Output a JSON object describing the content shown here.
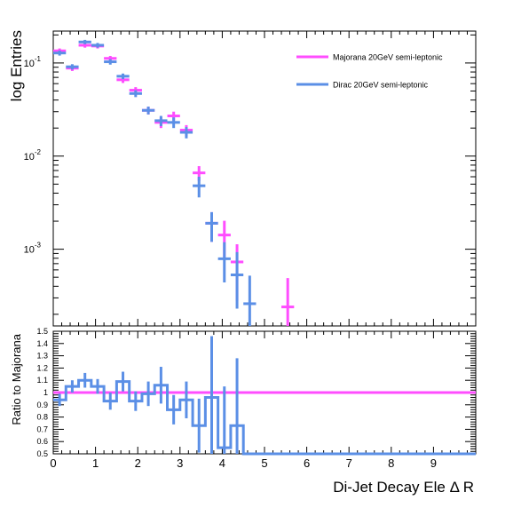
{
  "colors": {
    "majorana": "#ff4dff",
    "dirac": "#5b8fe6",
    "axis": "#000000",
    "background": "#ffffff"
  },
  "chart_data": [
    {
      "type": "scatter",
      "y_scale": "log",
      "xlim": [
        0,
        10
      ],
      "ylim": [
        0.00015,
        0.22
      ],
      "xlabel": "",
      "ylabel": "log Entries",
      "bin_width": 0.3,
      "legend_position": "top-right",
      "y_ticks": [
        {
          "value": 0.1,
          "mantissa": "10",
          "exp": "-1"
        },
        {
          "value": 0.01,
          "mantissa": "10",
          "exp": "-2"
        },
        {
          "value": 0.001,
          "mantissa": "10",
          "exp": "-3"
        }
      ],
      "series": [
        {
          "name": "Majorana 20GeV semi-leptonic",
          "color_key": "majorana",
          "x": [
            0.15,
            0.45,
            0.75,
            1.05,
            1.35,
            1.65,
            1.95,
            2.25,
            2.55,
            2.85,
            3.15,
            3.45,
            3.75,
            4.05,
            4.35,
            5.55
          ],
          "y": [
            0.135,
            0.088,
            0.155,
            0.152,
            0.112,
            0.066,
            0.051,
            0.031,
            0.023,
            0.027,
            0.019,
            0.0066,
            0.0019,
            0.00142,
            0.00073,
            0.00024
          ],
          "yerr_low": [
            0.008,
            0.006,
            0.009,
            0.009,
            0.007,
            0.005,
            0.004,
            0.003,
            0.003,
            0.003,
            0.0025,
            0.0012,
            0.0007,
            0.0006,
            0.00045,
            0.00011
          ],
          "yerr_high": [
            0.008,
            0.006,
            0.009,
            0.009,
            0.007,
            0.005,
            0.004,
            0.003,
            0.003,
            0.003,
            0.0025,
            0.0012,
            0.0006,
            0.0006,
            0.0004,
            0.00025
          ]
        },
        {
          "name": "Dirac 20GeV semi-leptonic",
          "color_key": "dirac",
          "x": [
            0.15,
            0.45,
            0.75,
            1.05,
            1.35,
            1.65,
            1.95,
            2.25,
            2.55,
            2.85,
            3.15,
            3.45,
            3.75,
            4.05,
            4.35,
            4.65
          ],
          "y": [
            0.128,
            0.091,
            0.168,
            0.155,
            0.103,
            0.072,
            0.047,
            0.031,
            0.024,
            0.023,
            0.018,
            0.0048,
            0.0019,
            0.00079,
            0.00053,
            0.00026
          ],
          "yerr_low": [
            0.008,
            0.006,
            0.009,
            0.009,
            0.007,
            0.005,
            0.004,
            0.003,
            0.003,
            0.003,
            0.0025,
            0.0012,
            0.0007,
            0.00035,
            0.0003,
            0.00012
          ],
          "yerr_high": [
            0.008,
            0.006,
            0.009,
            0.009,
            0.007,
            0.005,
            0.004,
            0.003,
            0.003,
            0.003,
            0.0025,
            0.0012,
            0.0006,
            0.0004,
            0.0004,
            0.00026
          ]
        }
      ]
    },
    {
      "type": "line",
      "xlim": [
        0,
        10
      ],
      "ylim": [
        0.5,
        1.5
      ],
      "xlabel": "Di-Jet Decay Ele  Δ R",
      "ylabel": "Ratio to Majorana",
      "x_tick_labels": [
        "0",
        "1",
        "2",
        "3",
        "4",
        "5",
        "6",
        "7",
        "8",
        "9"
      ],
      "y_tick_labels": [
        "0.5",
        "0.6",
        "0.7",
        "0.8",
        "0.9",
        "1",
        "1.1",
        "1.2",
        "1.3",
        "1.4",
        "1.5"
      ],
      "reference_line": {
        "y": 1.0,
        "color_key": "majorana"
      },
      "series": [
        {
          "name": "",
          "color_key": "dirac",
          "bin_edges": [
            0,
            0.3,
            0.6,
            0.9,
            1.2,
            1.5,
            1.8,
            2.1,
            2.4,
            2.7,
            3.0,
            3.3,
            3.6,
            3.9,
            4.2,
            4.5,
            10
          ],
          "values": [
            0.94,
            1.05,
            1.1,
            1.05,
            0.93,
            1.09,
            0.93,
            0.99,
            1.06,
            0.86,
            0.94,
            0.73,
            0.96,
            0.55,
            0.73,
            0.5
          ],
          "yerr": [
            0.05,
            0.05,
            0.06,
            0.06,
            0.07,
            0.08,
            0.08,
            0.1,
            0.15,
            0.12,
            0.15,
            0.22,
            0.5,
            0.5,
            0.55,
            0
          ]
        }
      ]
    }
  ]
}
